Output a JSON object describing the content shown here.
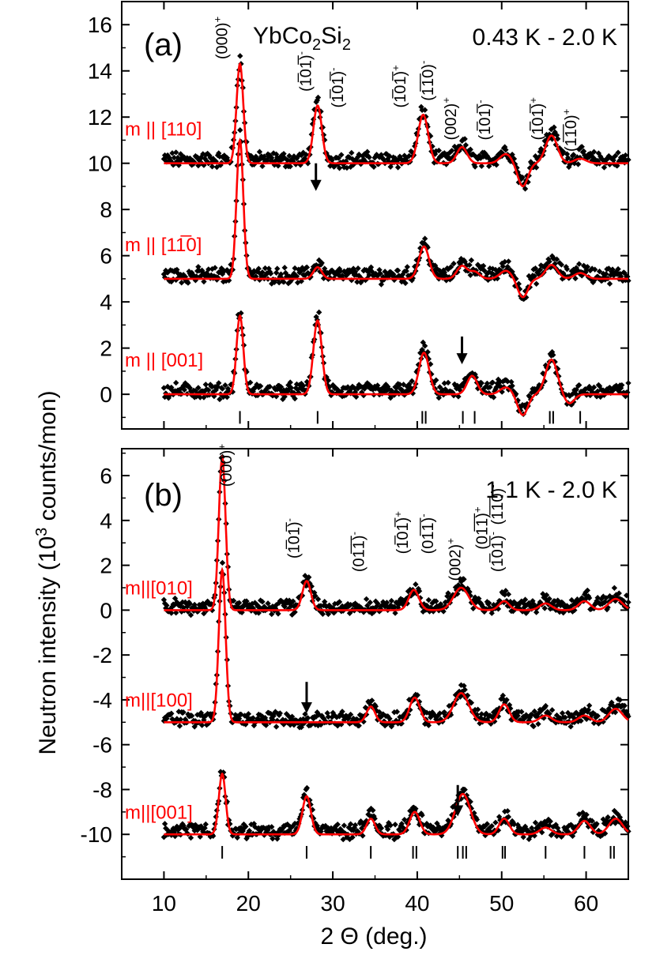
{
  "figure": {
    "ylabel_main": "Neutron intensity (10",
    "ylabel_sup": "3",
    "ylabel_tail": " counts/mon)",
    "xlabel": "2 Θ (deg.)"
  },
  "chart_data": [
    {
      "type": "line",
      "panel": "(a)",
      "compound": {
        "base": "YbCo",
        "sub1": "2",
        "mid": "Si",
        "sub2": "2"
      },
      "temperature": "0.43 K - 2.0 K",
      "xlim": [
        5,
        65
      ],
      "ylim": [
        -1.5,
        17.0
      ],
      "xticks": [
        10,
        20,
        30,
        40,
        50,
        60
      ],
      "xtick_labels": [
        "10",
        "20",
        "30",
        "40",
        "50",
        "60"
      ],
      "yticks": [
        0,
        2,
        4,
        6,
        8,
        10,
        12,
        14,
        16
      ],
      "ytick_labels": [
        "0",
        "2",
        "4",
        "6",
        "8",
        "10",
        "12",
        "14",
        "16"
      ],
      "grid": false,
      "series": [
        {
          "name": "m || [110]",
          "offset": 10,
          "curve_color": "#ff0000",
          "label_at_y": 11.2,
          "peaks": [
            [
              19.0,
              4.3,
              0.4
            ],
            [
              28.2,
              2.5,
              0.5
            ],
            [
              40.7,
              2.1,
              0.6
            ],
            [
              45.3,
              0.7,
              0.6
            ],
            [
              50.5,
              0.4,
              0.7
            ],
            [
              55.9,
              1.2,
              0.7
            ],
            [
              59.3,
              0.2,
              0.7
            ]
          ],
          "dips": [
            [
              52.5,
              -1.0,
              0.6
            ]
          ]
        },
        {
          "name": "m || [1-10]",
          "offset": 5,
          "curve_color": "#ff0000",
          "label_at_y": 6.2,
          "peaks": [
            [
              19.0,
              6.0,
              0.4
            ],
            [
              28.2,
              0.5,
              0.5
            ],
            [
              40.8,
              1.4,
              0.6
            ],
            [
              45.3,
              0.55,
              0.6
            ],
            [
              46.8,
              0.3,
              0.6
            ],
            [
              50.5,
              0.35,
              0.7
            ],
            [
              55.9,
              0.6,
              0.7
            ],
            [
              59.3,
              0.25,
              0.7
            ]
          ],
          "dips": [
            [
              52.5,
              -0.8,
              0.6
            ]
          ]
        },
        {
          "name": "m || [001]",
          "offset": 0,
          "curve_color": "#ff0000",
          "label_at_y": 1.2,
          "peaks": [
            [
              19.0,
              3.4,
              0.4
            ],
            [
              28.2,
              3.2,
              0.5
            ],
            [
              40.8,
              1.8,
              0.6
            ],
            [
              46.5,
              0.8,
              0.6
            ],
            [
              50.5,
              0.3,
              0.7
            ],
            [
              55.9,
              1.5,
              0.7
            ]
          ],
          "dips": [
            [
              52.5,
              -0.9,
              0.6
            ],
            [
              58.0,
              -0.4,
              0.6
            ]
          ]
        }
      ],
      "peak_labels": [
        {
          "text": "(000)",
          "sign": "+",
          "x": 17.5,
          "y": 14.5
        },
        {
          "text": "(101)",
          "sign": "-",
          "x": 27.4,
          "y": 13.1
        },
        {
          "text": "(101)",
          "sign": "-",
          "x": 31.2,
          "y": 12.4
        },
        {
          "text": "(101)",
          "sign": "+",
          "x": 38.6,
          "y": 12.4
        },
        {
          "text": "(110)",
          "sign": "-",
          "x": 41.9,
          "y": 12.7
        },
        {
          "text": "(002)",
          "sign": "+",
          "x": 44.6,
          "y": 11.0
        },
        {
          "text": "(101)",
          "sign": "-",
          "x": 48.6,
          "y": 11.0
        },
        {
          "text": "(101)",
          "sign": "+",
          "x": 54.9,
          "y": 11.0
        },
        {
          "text": "(110)",
          "sign": "+",
          "x": 58.8,
          "y": 10.5
        }
      ],
      "arrows": [
        {
          "x": 28.0,
          "y_top": 10.0,
          "y_tip": 8.8
        },
        {
          "x": 45.3,
          "y_top": 2.5,
          "y_tip": 1.3
        }
      ],
      "tick_marks": [
        19.0,
        28.2,
        40.6,
        41.0,
        45.4,
        46.8,
        55.7,
        56.1,
        59.3
      ],
      "tick_row_y": -1.0
    },
    {
      "type": "line",
      "panel": "(b)",
      "temperature": "1.1 K - 2.0 K",
      "xlim": [
        5,
        65
      ],
      "ylim": [
        -12.0,
        7.2
      ],
      "xticks": [
        10,
        20,
        30,
        40,
        50,
        60
      ],
      "xtick_labels": [
        "10",
        "20",
        "30",
        "40",
        "50",
        "60"
      ],
      "yticks": [
        -10,
        -8,
        -6,
        -4,
        -2,
        0,
        2,
        4,
        6
      ],
      "ytick_labels": [
        "-10",
        "-8",
        "-6",
        "-4",
        "-2",
        "0",
        "2",
        "4",
        "6"
      ],
      "grid": false,
      "series": [
        {
          "name": "m||[010]",
          "offset": 0,
          "curve_color": "#ff0000",
          "label_at_y": 0.7,
          "peaks": [
            [
              16.9,
              6.8,
              0.4
            ],
            [
              26.9,
              1.3,
              0.5
            ],
            [
              39.6,
              0.9,
              0.6
            ],
            [
              45.2,
              1.0,
              0.9
            ],
            [
              50.3,
              0.4,
              0.6
            ],
            [
              55.2,
              0.3,
              0.7
            ],
            [
              59.8,
              0.4,
              0.7
            ],
            [
              63.5,
              0.5,
              0.8
            ]
          ],
          "dips": []
        },
        {
          "name": "m||[100]",
          "offset": -5,
          "curve_color": "#ff0000",
          "label_at_y": -4.3,
          "peaks": [
            [
              16.9,
              6.8,
              0.4
            ],
            [
              34.5,
              0.7,
              0.5
            ],
            [
              39.7,
              1.1,
              0.6
            ],
            [
              45.2,
              1.3,
              0.9
            ],
            [
              50.3,
              0.8,
              0.6
            ],
            [
              55.2,
              0.3,
              0.7
            ],
            [
              59.8,
              0.3,
              0.7
            ],
            [
              63.5,
              0.6,
              0.8
            ]
          ],
          "dips": []
        },
        {
          "name": "m||[001]",
          "offset": -10,
          "curve_color": "#ff0000",
          "label_at_y": -9.3,
          "peaks": [
            [
              16.9,
              2.7,
              0.4
            ],
            [
              26.9,
              1.7,
              0.5
            ],
            [
              34.5,
              0.7,
              0.5
            ],
            [
              39.7,
              1.0,
              0.6
            ],
            [
              45.4,
              1.8,
              0.9
            ],
            [
              50.3,
              0.7,
              0.6
            ],
            [
              55.2,
              0.3,
              0.7
            ],
            [
              59.8,
              0.6,
              0.7
            ],
            [
              63.5,
              0.7,
              0.8
            ]
          ],
          "dips": []
        }
      ],
      "peak_labels": [
        {
          "text": "(000)",
          "sign": "+",
          "x": 18.0,
          "y": 5.5
        },
        {
          "text": "(101)",
          "sign": "-",
          "x": 26.0,
          "y": 2.3
        },
        {
          "text": "(011)",
          "sign": "-",
          "x": 33.7,
          "y": 1.7
        },
        {
          "text": "(101)",
          "sign": "+",
          "x": 38.9,
          "y": 2.5
        },
        {
          "text": "(011)",
          "sign": "-",
          "x": 41.9,
          "y": 2.5
        },
        {
          "text": "(002)",
          "sign": "+",
          "x": 45.1,
          "y": 1.3
        },
        {
          "text": "(011)",
          "sign": "+",
          "x": 48.3,
          "y": 2.7
        },
        {
          "text": "(110)",
          "sign": "-",
          "x": 50.1,
          "y": 3.8
        },
        {
          "text": "(101)",
          "sign": "-",
          "x": 50.1,
          "y": 1.7
        }
      ],
      "arrows": [
        {
          "x": 26.9,
          "y_top": -3.2,
          "y_tip": -4.6
        },
        {
          "x": 44.8,
          "y_top": -7.8,
          "y_tip": -9.2
        }
      ],
      "tick_marks": [
        16.9,
        26.9,
        34.5,
        39.5,
        39.9,
        44.8,
        45.4,
        45.8,
        50.1,
        50.4,
        55.2,
        59.8,
        62.9,
        63.3
      ],
      "tick_row_y": -10.8
    }
  ]
}
